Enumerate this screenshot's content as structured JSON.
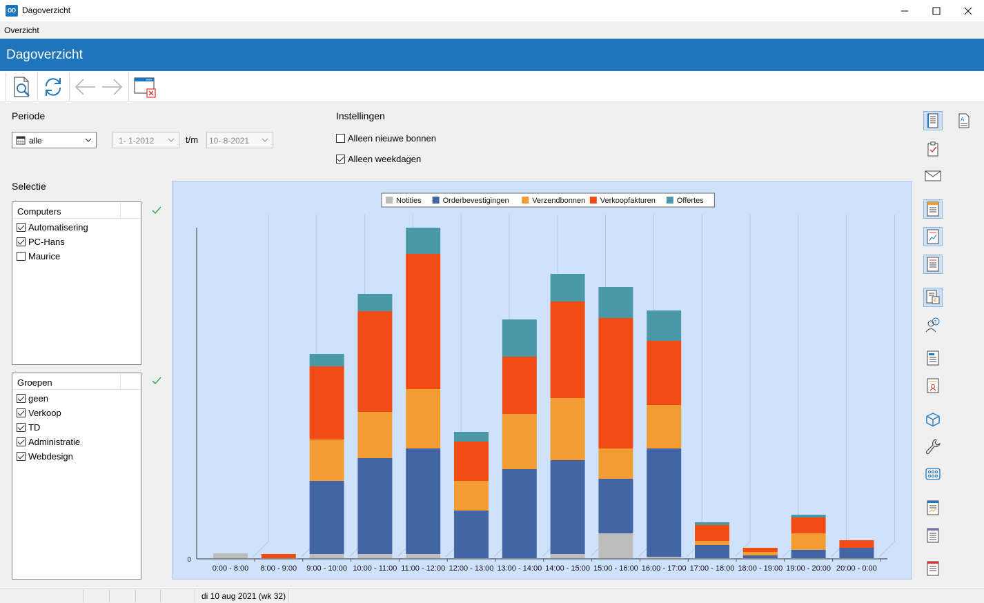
{
  "window": {
    "app_icon_text": "OD",
    "title": "Dagoverzicht"
  },
  "menu": {
    "items": [
      "Overzicht"
    ]
  },
  "header": {
    "title": "Dagoverzicht"
  },
  "toolbar": {
    "icons": [
      "preview-icon",
      "refresh-icon",
      "back-arrow-icon",
      "forward-arrow-icon",
      "close-window-icon"
    ]
  },
  "periode": {
    "label": "Periode",
    "mode_value": "alle",
    "from_date": "1-  1-2012",
    "to_label": "t/m",
    "to_date": "10-  8-2021"
  },
  "instellingen": {
    "label": "Instellingen",
    "options": [
      {
        "label": "Alleen nieuwe bonnen",
        "checked": false
      },
      {
        "label": "Alleen weekdagen",
        "checked": true
      }
    ]
  },
  "selectie": {
    "label": "Selectie",
    "computers": {
      "header": "Computers",
      "items": [
        {
          "label": "Automatisering",
          "checked": true
        },
        {
          "label": "PC-Hans",
          "checked": true
        },
        {
          "label": "Maurice",
          "checked": false
        }
      ]
    },
    "groepen": {
      "header": "Groepen",
      "items": [
        {
          "label": "geen",
          "checked": true
        },
        {
          "label": "Verkoop",
          "checked": true
        },
        {
          "label": "TD",
          "checked": true
        },
        {
          "label": "Administratie",
          "checked": true
        },
        {
          "label": "Webdesign",
          "checked": true
        }
      ]
    }
  },
  "colors": {
    "accent": "#1e75bb",
    "chart_bg": "#cfe2fb",
    "notities": "#bdbdbd",
    "orderbevestigingen": "#4465a3",
    "verzendbonnen": "#f39c34",
    "verkoopfakturen": "#f04c14",
    "offertes": "#4a98a8",
    "check_green": "#3aa655"
  },
  "chart_data": {
    "type": "bar",
    "stacked": true,
    "legend_position": "top-center",
    "y_tick_labels": [
      "0"
    ],
    "categories": [
      "0:00 - 8:00",
      "8:00 - 9:00",
      "9:00 - 10:00",
      "10:00 - 11:00",
      "11:00 - 12:00",
      "12:00 - 13:00",
      "13:00 - 14:00",
      "14:00 - 15:00",
      "15:00 - 16:00",
      "16:00 - 17:00",
      "17:00 - 18:00",
      "18:00 - 19:00",
      "19:00 - 20:00",
      "20:00 - 0:00"
    ],
    "series": [
      {
        "name": "Notities",
        "color": "#bdbdbd",
        "values": [
          7,
          0,
          6,
          6,
          6,
          0,
          0,
          6,
          36,
          2,
          0,
          0,
          0,
          0
        ]
      },
      {
        "name": "Orderbevestigingen",
        "color": "#4465a3",
        "values": [
          0,
          0,
          106,
          139,
          153,
          69,
          129,
          136,
          79,
          157,
          19,
          4,
          12,
          15
        ]
      },
      {
        "name": "Verzendbonnen",
        "color": "#f39c34",
        "values": [
          0,
          0,
          60,
          67,
          86,
          43,
          80,
          90,
          44,
          63,
          6,
          5,
          24,
          0
        ]
      },
      {
        "name": "Verkoopfakturen",
        "color": "#f04c14",
        "values": [
          0,
          6,
          106,
          146,
          196,
          57,
          83,
          140,
          189,
          93,
          23,
          6,
          23,
          11
        ]
      },
      {
        "name": "Offertes",
        "color": "#4a98a8",
        "values": [
          0,
          0,
          18,
          25,
          38,
          14,
          54,
          40,
          45,
          44,
          4,
          0,
          4,
          0
        ]
      }
    ]
  },
  "right_toolbar": {
    "icons": [
      "journal-icon",
      "document-text-icon",
      "checklist-icon",
      "mail-icon",
      "form-icon",
      "form-chart-icon",
      "form-lines-icon",
      "form-euro-icon",
      "users-help-icon",
      "invoice-icon",
      "invoice-person-icon",
      "cube-icon",
      "wrench-icon",
      "grid-icon",
      "report-icon",
      "report-list-icon",
      "report-text-icon"
    ]
  },
  "status": {
    "date_text": "di 10 aug 2021 (wk 32)"
  }
}
